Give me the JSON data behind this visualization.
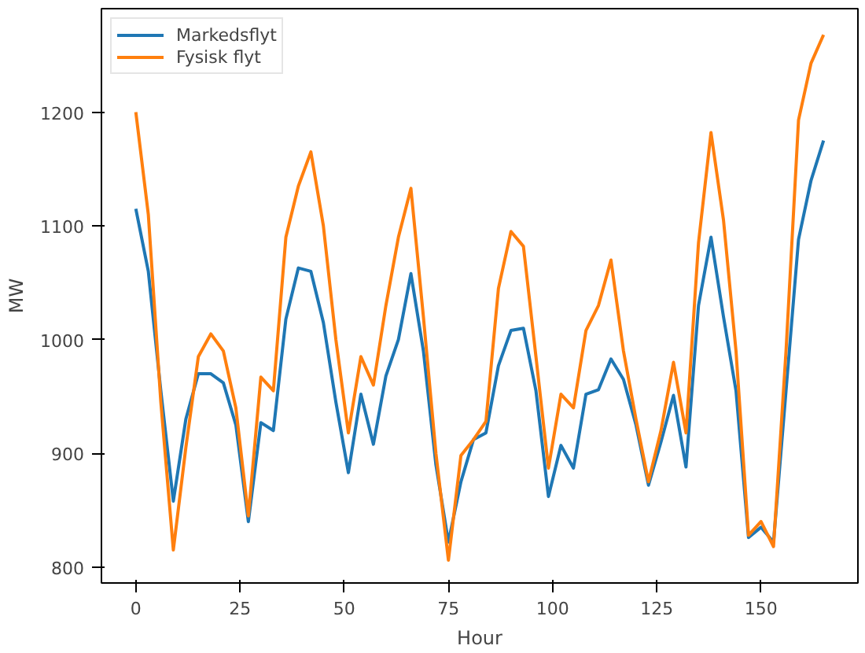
{
  "chart_data": {
    "type": "line",
    "xlabel": "Hour",
    "ylabel": "MW",
    "x": [
      0,
      3,
      6,
      9,
      12,
      15,
      18,
      21,
      24,
      27,
      30,
      33,
      36,
      39,
      42,
      45,
      48,
      51,
      54,
      57,
      60,
      63,
      66,
      69,
      72,
      75,
      78,
      81,
      84,
      87,
      90,
      93,
      96,
      99,
      102,
      105,
      108,
      111,
      114,
      117,
      120,
      123,
      126,
      129,
      132,
      135,
      138,
      141,
      144,
      147,
      150,
      153,
      156,
      159,
      162,
      165
    ],
    "series": [
      {
        "name": "Markedsflyt",
        "color": "#1f77b4",
        "values": [
          1115,
          1060,
          955,
          858,
          930,
          970,
          970,
          962,
          925,
          840,
          927,
          920,
          1018,
          1063,
          1060,
          1015,
          945,
          883,
          952,
          908,
          968,
          1000,
          1058,
          990,
          890,
          822,
          875,
          912,
          918,
          977,
          1008,
          1010,
          955,
          862,
          907,
          887,
          952,
          956,
          983,
          965,
          925,
          872,
          910,
          951,
          888,
          1030,
          1090,
          1020,
          955,
          826,
          835,
          822,
          955,
          1088,
          1140,
          1175
        ]
      },
      {
        "name": "Fysisk flyt",
        "color": "#ff7f0e",
        "values": [
          1200,
          1110,
          945,
          815,
          905,
          985,
          1005,
          990,
          940,
          845,
          967,
          955,
          1090,
          1135,
          1165,
          1100,
          1000,
          918,
          985,
          960,
          1030,
          1090,
          1133,
          1020,
          900,
          806,
          898,
          912,
          928,
          1045,
          1095,
          1082,
          985,
          887,
          952,
          940,
          1008,
          1030,
          1070,
          990,
          930,
          875,
          920,
          980,
          918,
          1085,
          1182,
          1105,
          990,
          828,
          840,
          818,
          990,
          1193,
          1243,
          1268
        ]
      }
    ],
    "xlim": [
      -8.25,
      173.25
    ],
    "ylim": [
      786,
      1291
    ],
    "xticks": [
      0,
      25,
      50,
      75,
      100,
      125,
      150
    ],
    "yticks": [
      800,
      900,
      1000,
      1100,
      1200
    ],
    "grid": false,
    "legend": "top left",
    "marker": "none",
    "line_style": "solid"
  }
}
